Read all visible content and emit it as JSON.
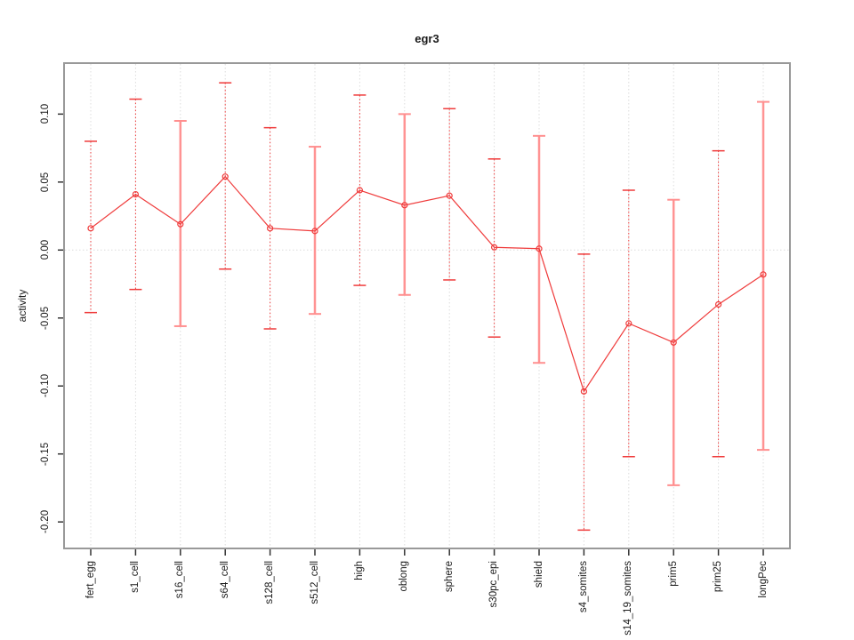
{
  "title": "egr3",
  "colors": {
    "line_red": "#ef3b3b",
    "bar_pink": "#ff9393",
    "bar_pink_cap": "#ff8f8f",
    "grid": "#dcdcdc",
    "box_border": "#999999",
    "tick": "#333333",
    "text": "#1a1a1a",
    "background": "#ffffff"
  },
  "chart_data": {
    "type": "line",
    "title": "egr3",
    "xlabel": "",
    "ylabel": "activity",
    "legend_position": "none",
    "grid": "dotted vertical line at each category; dotted horizontal line at y=0",
    "categories": [
      "fert_egg",
      "s1_cell",
      "s16_cell",
      "s64_cell",
      "s128_cell",
      "s512_cell",
      "high",
      "oblong",
      "sphere",
      "s30pc_epi",
      "shield",
      "s4_somites",
      "s14_19_somites",
      "prim5",
      "prim25",
      "longPec"
    ],
    "series": [
      {
        "name": "activity",
        "marker": "open-circle",
        "values": [
          0.016,
          0.041,
          0.019,
          0.054,
          0.016,
          0.014,
          0.044,
          0.033,
          0.04,
          0.002,
          0.001,
          -0.104,
          -0.054,
          -0.068,
          -0.04,
          -0.018
        ],
        "upper": [
          0.08,
          0.111,
          0.095,
          0.123,
          0.09,
          0.076,
          0.114,
          0.1,
          0.104,
          0.067,
          0.084,
          -0.003,
          0.044,
          0.037,
          0.073,
          0.109
        ],
        "lower": [
          -0.046,
          -0.029,
          -0.056,
          -0.014,
          -0.058,
          -0.047,
          -0.026,
          -0.033,
          -0.022,
          -0.064,
          -0.083,
          -0.206,
          -0.152,
          -0.173,
          -0.152,
          -0.147
        ],
        "errorbar_styles": [
          "dotted",
          "dotted",
          "solid",
          "dotted",
          "dotted",
          "solid",
          "dotted",
          "solid",
          "dotted",
          "dotted",
          "solid",
          "dotted",
          "dotted",
          "solid",
          "dotted",
          "solid"
        ]
      }
    ],
    "yticks": [
      0.1,
      0.05,
      0.0,
      -0.05,
      -0.1,
      -0.15,
      -0.2
    ],
    "ytick_labels": [
      "0.10",
      "0.05",
      "0.00",
      "-0.05",
      "-0.10",
      "-0.15",
      "-0.20"
    ],
    "ylim": [
      -0.2195,
      0.1375
    ]
  }
}
